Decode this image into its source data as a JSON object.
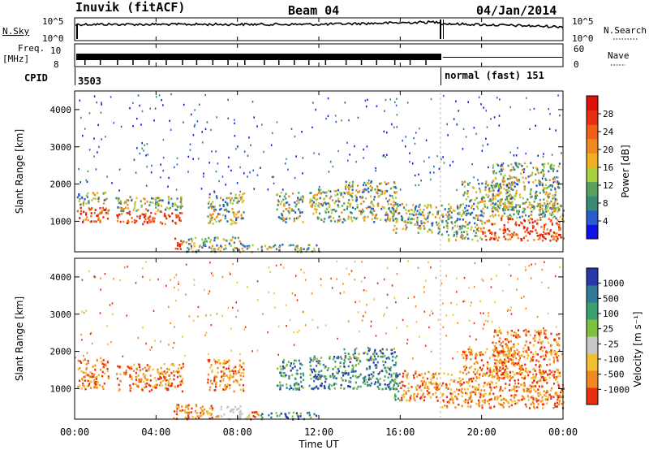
{
  "header": {
    "title": "Inuvik (fitACF)",
    "beam": "Beam 04",
    "date": "04/Jan/2014"
  },
  "top_panels": {
    "nsky_label": "N.Sky",
    "nsky_ticks": [
      "10^5",
      "10^0"
    ],
    "nsearch_label": "N.Search",
    "nsearch_ticks": [
      "10^5",
      "10^0"
    ],
    "freq_label": "Freq.",
    "freq_unit": "[MHz]",
    "freq_ticks": [
      "10",
      "8"
    ],
    "nave_label": "Nave",
    "nave_ticks": [
      "60",
      "0"
    ],
    "cpid_label": "CPID",
    "cpid_values": [
      "3503",
      "normal (fast) 151"
    ]
  },
  "chart_data": [
    {
      "type": "heatmap",
      "name": "power",
      "ylabel": "Slant Range [km]",
      "yticks": [
        1000,
        2000,
        3000,
        4000
      ],
      "ylim": [
        180,
        4500
      ],
      "xlim_hours": [
        0,
        24
      ],
      "colorbar": {
        "label": "Power [dB]",
        "ticks": [
          "4",
          "8",
          "12",
          "16",
          "20",
          "24",
          "28"
        ],
        "colors": [
          "#1010e8",
          "#2a5ad0",
          "#3a8a78",
          "#5aa060",
          "#a8d040",
          "#f0b020",
          "#f08a20",
          "#f06018",
          "#e83010",
          "#e01008"
        ]
      }
    },
    {
      "type": "heatmap",
      "name": "velocity",
      "ylabel": "Slant Range [km]",
      "yticks": [
        1000,
        2000,
        3000,
        4000
      ],
      "ylim": [
        180,
        4500
      ],
      "xlim_hours": [
        0,
        24
      ],
      "colorbar": {
        "label": "Velocity [m s⁻¹]",
        "ticks": [
          "1000",
          "500",
          "100",
          "25",
          "-25",
          "-100",
          "-500",
          "-1000"
        ],
        "colors": [
          "#2838a8",
          "#2e7a98",
          "#3aa070",
          "#80c040",
          "#c8c8c8",
          "#f0c030",
          "#f08a20",
          "#e83010"
        ]
      }
    }
  ],
  "x_axis": {
    "ticks": [
      "00:00",
      "04:00",
      "08:00",
      "12:00",
      "16:00",
      "20:00",
      "00:00"
    ],
    "label": "Time UT"
  }
}
